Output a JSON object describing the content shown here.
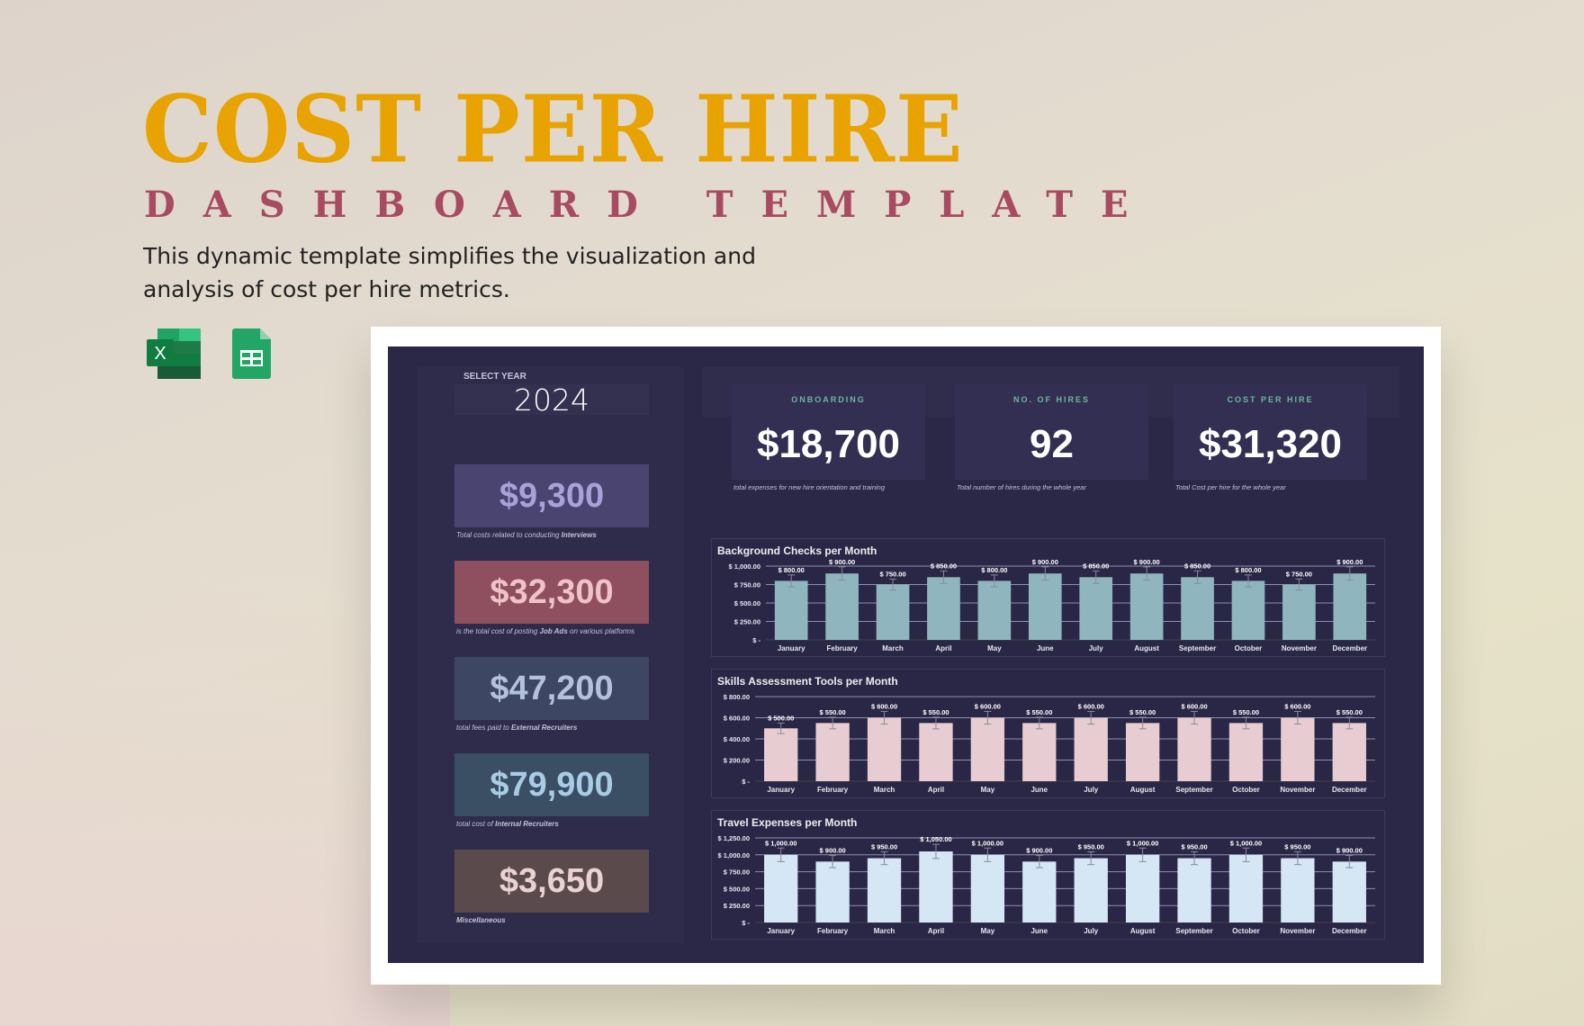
{
  "header": {
    "title": "COST PER HIRE",
    "subtitle": "DASHBOARD TEMPLATE",
    "description": "This dynamic template simplifies the visualization and analysis of cost per hire metrics.",
    "icons": [
      "excel-icon",
      "google-sheets-icon"
    ]
  },
  "dashboard": {
    "year_label": "SELECT YEAR",
    "year": "2024",
    "cost_cards": [
      {
        "value": "$9,300",
        "caption_pre": "Total costs related to conducting ",
        "caption_bold": "Interviews",
        "caption_post": "",
        "bg": "#4a4470",
        "fg": "#a9a2d8"
      },
      {
        "value": "$32,300",
        "caption_pre": "is the total cost of posting ",
        "caption_bold": "Job Ads",
        "caption_post": " on various platforms",
        "bg": "#8e4f5f",
        "fg": "#efc2c8"
      },
      {
        "value": "$47,200",
        "caption_pre": "total fees paid to ",
        "caption_bold": "External Recruiters",
        "caption_post": "",
        "bg": "#3d4663",
        "fg": "#b4c1de"
      },
      {
        "value": "$79,900",
        "caption_pre": "total cost of ",
        "caption_bold": "Internal Recruiters",
        "caption_post": "",
        "bg": "#3a4f63",
        "fg": "#a9cbe4"
      },
      {
        "value": "$3,650",
        "caption_pre": "",
        "caption_bold": "Miscellaneous",
        "caption_post": "",
        "bg": "#5b4a4b",
        "fg": "#ead2d3"
      }
    ],
    "kpis": [
      {
        "label": "ONBOARDING",
        "value": "$18,700",
        "caption": "total expenses for new hire orientation and training"
      },
      {
        "label": "NO. OF HIRES",
        "value": "92",
        "caption": "Total number of hires during the whole year"
      },
      {
        "label": "COST PER HIRE",
        "value": "$31,320",
        "caption": "Total Cost per hire for the whole year"
      }
    ]
  },
  "chart_data": [
    {
      "type": "bar",
      "title": "Background Checks per Month",
      "categories": [
        "January",
        "February",
        "March",
        "April",
        "May",
        "June",
        "July",
        "August",
        "September",
        "October",
        "November",
        "December"
      ],
      "values": [
        800,
        900,
        750,
        850,
        800,
        900,
        850,
        900,
        850,
        800,
        750,
        900
      ],
      "ylim": [
        0,
        1000
      ],
      "yticks": [
        "$ -",
        "$ 250.00",
        "$ 500.00",
        "$ 750.00",
        "$ 1,000.00"
      ],
      "data_labels": [
        "$ 800.00",
        "$ 900.00",
        "$ 750.00",
        "$ 850.00",
        "$ 800.00",
        "$ 900.00",
        "$ 850.00",
        "$ 900.00",
        "$ 850.00",
        "$ 800.00",
        "$ 750.00",
        "$ 900.00"
      ],
      "color": "#8fb6be",
      "error_bars": true,
      "grid": true
    },
    {
      "type": "bar",
      "title": "Skills Assessment Tools per Month",
      "categories": [
        "January",
        "February",
        "March",
        "April",
        "May",
        "June",
        "July",
        "August",
        "September",
        "October",
        "November",
        "December"
      ],
      "values": [
        500,
        550,
        600,
        550,
        600,
        550,
        600,
        550,
        600,
        550,
        600,
        550
      ],
      "ylim": [
        0,
        800
      ],
      "yticks": [
        "$ -",
        "$ 200.00",
        "$ 400.00",
        "$ 600.00",
        "$ 800.00"
      ],
      "data_labels": [
        "$ 500.00",
        "$ 550.00",
        "$ 600.00",
        "$ 550.00",
        "$ 600.00",
        "$ 550.00",
        "$ 600.00",
        "$ 550.00",
        "$ 600.00",
        "$ 550.00",
        "$ 600.00",
        "$ 550.00"
      ],
      "color": "#e7cdd1",
      "error_bars": true,
      "grid": true
    },
    {
      "type": "bar",
      "title": "Travel Expenses per Month",
      "categories": [
        "January",
        "February",
        "March",
        "April",
        "May",
        "June",
        "July",
        "August",
        "September",
        "October",
        "November",
        "December"
      ],
      "values": [
        1000,
        900,
        950,
        1050,
        1000,
        900,
        950,
        1000,
        950,
        1000,
        950,
        900
      ],
      "ylim": [
        0,
        1250
      ],
      "yticks": [
        "$ -",
        "$ 250.00",
        "$ 500.00",
        "$ 750.00",
        "$ 1,000.00",
        "$ 1,250.00"
      ],
      "data_labels": [
        "$ 1,000.00",
        "$ 900.00",
        "$ 950.00",
        "$ 1,050.00",
        "$ 1,000.00",
        "$ 900.00",
        "$ 950.00",
        "$ 1,000.00",
        "$ 950.00",
        "$ 1,000.00",
        "$ 950.00",
        "$ 900.00"
      ],
      "color": "#d5e6f4",
      "error_bars": true,
      "grid": true
    }
  ]
}
